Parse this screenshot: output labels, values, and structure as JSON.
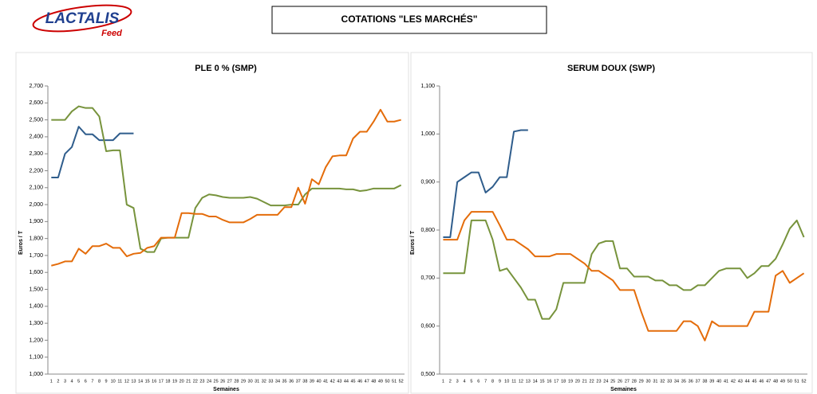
{
  "header": {
    "logo": "LACTALIS",
    "logo_sub": "Feed",
    "title": "COTATIONS \"LES MARCHÉS\""
  },
  "chart_data": [
    {
      "type": "line",
      "title": "PLE 0 % (SMP)",
      "x_label": "Semaines",
      "y_label": "Euros / T",
      "categories": [
        "1",
        "2",
        "3",
        "4",
        "5",
        "6",
        "7",
        "8",
        "9",
        "10",
        "11",
        "12",
        "13",
        "14",
        "15",
        "16",
        "17",
        "18",
        "19",
        "20",
        "21",
        "22",
        "23",
        "24",
        "25",
        "26",
        "27",
        "28",
        "29",
        "30",
        "31",
        "32",
        "33",
        "34",
        "35",
        "36",
        "37",
        "38",
        "39",
        "40",
        "41",
        "42",
        "43",
        "44",
        "45",
        "46",
        "47",
        "48",
        "49",
        "50",
        "51",
        "52"
      ],
      "ylim": [
        1000,
        2700
      ],
      "yticks": [
        {
          "value": 1000,
          "label": "1,000"
        },
        {
          "value": 1100,
          "label": "1,100"
        },
        {
          "value": 1200,
          "label": "1,200"
        },
        {
          "value": 1300,
          "label": "1,300"
        },
        {
          "value": 1400,
          "label": "1,400"
        },
        {
          "value": 1500,
          "label": "1,500"
        },
        {
          "value": 1600,
          "label": "1,600"
        },
        {
          "value": 1700,
          "label": "1,700"
        },
        {
          "value": 1800,
          "label": "1,800"
        },
        {
          "value": 1900,
          "label": "1,900"
        },
        {
          "value": 2000,
          "label": "2,000"
        },
        {
          "value": 2100,
          "label": "2,100"
        },
        {
          "value": 2200,
          "label": "2,200"
        },
        {
          "value": 2300,
          "label": "2,300"
        },
        {
          "value": 2400,
          "label": "2,400"
        },
        {
          "value": 2500,
          "label": "2,500"
        },
        {
          "value": 2600,
          "label": "2,600"
        },
        {
          "value": 2700,
          "label": "2,700"
        }
      ],
      "series": [
        {
          "color": "#2f5d8c",
          "values": [
            2160,
            2160,
            2300,
            2340,
            2460,
            2415,
            2415,
            2380,
            2380,
            2380,
            2420,
            2420,
            2420,
            null,
            null,
            null,
            null,
            null,
            null,
            null,
            null,
            null,
            null,
            null,
            null,
            null,
            null,
            null,
            null,
            null,
            null,
            null,
            null,
            null,
            null,
            null,
            null,
            null,
            null,
            null,
            null,
            null,
            null,
            null,
            null,
            null,
            null,
            null,
            null,
            null,
            null,
            null
          ]
        },
        {
          "color": "#77933c",
          "values": [
            2500,
            2500,
            2500,
            2550,
            2580,
            2570,
            2570,
            2520,
            2315,
            2320,
            2320,
            2000,
            1980,
            1740,
            1720,
            1720,
            1800,
            1805,
            1805,
            1805,
            1805,
            1980,
            2040,
            2060,
            2055,
            2045,
            2040,
            2040,
            2040,
            2045,
            2035,
            2015,
            1995,
            1995,
            1995,
            2000,
            2000,
            2060,
            2095,
            2095,
            2095,
            2095,
            2095,
            2090,
            2090,
            2080,
            2085,
            2095,
            2095,
            2095,
            2095,
            2115
          ]
        },
        {
          "color": "#e46c0a",
          "values": [
            1640,
            1650,
            1665,
            1665,
            1740,
            1710,
            1755,
            1755,
            1770,
            1745,
            1745,
            1695,
            1710,
            1715,
            1745,
            1755,
            1805,
            1805,
            1805,
            1950,
            1950,
            1945,
            1945,
            1930,
            1930,
            1910,
            1895,
            1895,
            1895,
            1915,
            1940,
            1940,
            1940,
            1940,
            1985,
            1985,
            2100,
            2005,
            2150,
            2120,
            2220,
            2285,
            2290,
            2290,
            2390,
            2430,
            2430,
            2490,
            2560,
            2490,
            2490,
            2500
          ]
        }
      ]
    },
    {
      "type": "line",
      "title": "SERUM DOUX (SWP)",
      "x_label": "Semaines",
      "y_label": "Euros / T",
      "categories": [
        "1",
        "2",
        "3",
        "4",
        "5",
        "6",
        "7",
        "8",
        "9",
        "10",
        "11",
        "12",
        "13",
        "14",
        "15",
        "16",
        "17",
        "18",
        "19",
        "20",
        "21",
        "22",
        "23",
        "24",
        "25",
        "26",
        "27",
        "28",
        "29",
        "30",
        "31",
        "32",
        "33",
        "34",
        "35",
        "36",
        "37",
        "38",
        "39",
        "40",
        "41",
        "42",
        "43",
        "44",
        "45",
        "46",
        "47",
        "48",
        "49",
        "50",
        "51",
        "52"
      ],
      "ylim": [
        0.5,
        1.1
      ],
      "yticks": [
        {
          "value": 0.5,
          "label": "0,500"
        },
        {
          "value": 0.6,
          "label": "0,600"
        },
        {
          "value": 0.7,
          "label": "0,700"
        },
        {
          "value": 0.8,
          "label": "0,800"
        },
        {
          "value": 0.9,
          "label": "0,900"
        },
        {
          "value": 1.0,
          "label": "1,000"
        },
        {
          "value": 1.1,
          "label": "1,100"
        }
      ],
      "series": [
        {
          "color": "#2f5d8c",
          "values": [
            0.785,
            0.785,
            0.9,
            0.91,
            0.92,
            0.92,
            0.878,
            0.89,
            0.91,
            0.91,
            1.005,
            1.008,
            1.008,
            null,
            null,
            null,
            null,
            null,
            null,
            null,
            null,
            null,
            null,
            null,
            null,
            null,
            null,
            null,
            null,
            null,
            null,
            null,
            null,
            null,
            null,
            null,
            null,
            null,
            null,
            null,
            null,
            null,
            null,
            null,
            null,
            null,
            null,
            null,
            null,
            null,
            null,
            null
          ]
        },
        {
          "color": "#77933c",
          "values": [
            0.71,
            0.71,
            0.71,
            0.71,
            0.82,
            0.82,
            0.82,
            0.78,
            0.715,
            0.72,
            0.7,
            0.68,
            0.655,
            0.655,
            0.615,
            0.615,
            0.635,
            0.69,
            0.69,
            0.69,
            0.69,
            0.75,
            0.772,
            0.777,
            0.777,
            0.72,
            0.72,
            0.703,
            0.703,
            0.703,
            0.695,
            0.695,
            0.685,
            0.685,
            0.675,
            0.675,
            0.685,
            0.685,
            0.7,
            0.715,
            0.72,
            0.72,
            0.72,
            0.7,
            0.71,
            0.725,
            0.725,
            0.74,
            0.77,
            0.803,
            0.82,
            0.785
          ]
        },
        {
          "color": "#e46c0a",
          "values": [
            0.78,
            0.78,
            0.78,
            0.82,
            0.838,
            0.838,
            0.838,
            0.838,
            0.81,
            0.78,
            0.78,
            0.77,
            0.76,
            0.745,
            0.745,
            0.745,
            0.75,
            0.75,
            0.75,
            0.74,
            0.73,
            0.715,
            0.715,
            0.705,
            0.695,
            0.675,
            0.675,
            0.675,
            0.63,
            0.59,
            0.59,
            0.59,
            0.59,
            0.59,
            0.61,
            0.61,
            0.6,
            0.57,
            0.61,
            0.6,
            0.6,
            0.6,
            0.6,
            0.6,
            0.63,
            0.63,
            0.63,
            0.705,
            0.715,
            0.69,
            0.7,
            0.71
          ]
        }
      ]
    }
  ]
}
